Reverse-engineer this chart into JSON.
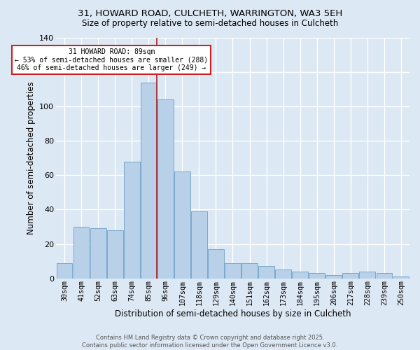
{
  "title1": "31, HOWARD ROAD, CULCHETH, WARRINGTON, WA3 5EH",
  "title2": "Size of property relative to semi-detached houses in Culcheth",
  "xlabel": "Distribution of semi-detached houses by size in Culcheth",
  "ylabel": "Number of semi-detached properties",
  "categories": [
    "30sqm",
    "41sqm",
    "52sqm",
    "63sqm",
    "74sqm",
    "85sqm",
    "96sqm",
    "107sqm",
    "118sqm",
    "129sqm",
    "140sqm",
    "151sqm",
    "162sqm",
    "173sqm",
    "184sqm",
    "195sqm",
    "206sqm",
    "217sqm",
    "228sqm",
    "239sqm",
    "250sqm"
  ],
  "bar_heights": [
    9,
    30,
    29,
    28,
    68,
    114,
    104,
    62,
    39,
    17,
    9,
    9,
    7,
    5,
    4,
    3,
    2,
    3,
    4,
    3,
    1
  ],
  "property_size": 89,
  "vline_bin": 5,
  "annotation_title": "31 HOWARD ROAD: 89sqm",
  "annotation_line1": "← 53% of semi-detached houses are smaller (288)",
  "annotation_line2": "46% of semi-detached houses are larger (249) →",
  "bar_color": "#b8d0e8",
  "bar_edge_color": "#7aa8cc",
  "vline_color": "#aa2222",
  "annotation_box_facecolor": "#ffffff",
  "annotation_box_edgecolor": "#cc2222",
  "bg_color": "#dce8f4",
  "grid_color": "#ffffff",
  "footer1": "Contains HM Land Registry data © Crown copyright and database right 2025.",
  "footer2": "Contains public sector information licensed under the Open Government Licence v3.0.",
  "ylim": [
    0,
    140
  ],
  "yticks": [
    0,
    20,
    40,
    60,
    80,
    100,
    120,
    140
  ]
}
